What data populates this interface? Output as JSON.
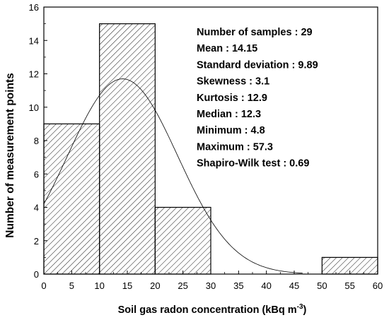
{
  "chart_data": {
    "type": "bar",
    "subtype": "histogram",
    "xlabel_main": "Soil gas radon concentration (kBq m",
    "xlabel_sup": "-3",
    "xlabel_end": ")",
    "ylabel": "Number of measurement points",
    "xlim": [
      0,
      60
    ],
    "ylim": [
      0,
      16
    ],
    "x_ticks": [
      0,
      5,
      10,
      15,
      20,
      25,
      30,
      35,
      40,
      45,
      50,
      55,
      60
    ],
    "y_ticks": [
      0,
      2,
      4,
      6,
      8,
      10,
      12,
      14,
      16
    ],
    "bins": [
      {
        "from": 0,
        "to": 10,
        "count": 9
      },
      {
        "from": 10,
        "to": 20,
        "count": 15
      },
      {
        "from": 20,
        "to": 30,
        "count": 4
      },
      {
        "from": 50,
        "to": 60,
        "count": 1
      }
    ],
    "fit_curve": {
      "kind": "normal",
      "mean": 14.15,
      "sd": 9.89,
      "n": 29,
      "bin_width": 10
    },
    "fill_pattern": "diagonal-hatch",
    "grid": false,
    "stats_lines": [
      "Number of samples : 29",
      "Mean :  14.15",
      "Standard deviation : 9.89",
      "Skewness : 3.1",
      "Kurtosis : 12.9",
      "Median : 12.3",
      "Minimum : 4.8",
      "Maximum : 57.3",
      "Shapiro-Wilk test : 0.69"
    ]
  }
}
